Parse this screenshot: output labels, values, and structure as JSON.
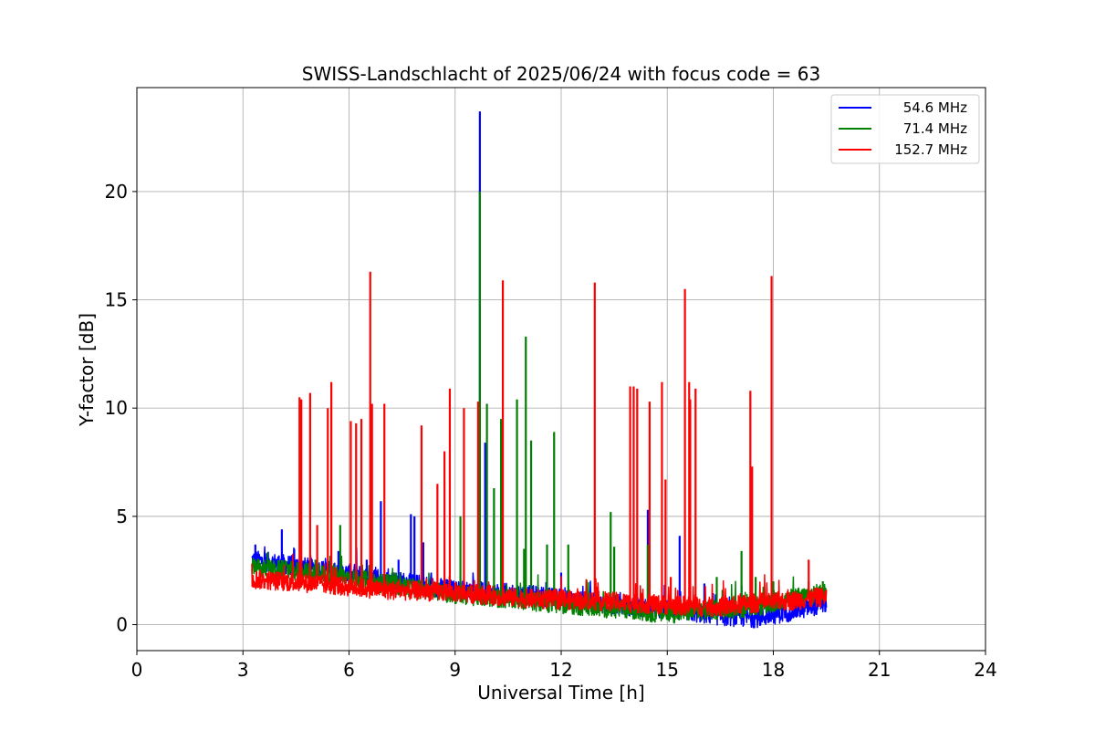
{
  "chart_data": {
    "type": "line",
    "title": "SWISS-Landschlacht of 2025/06/24 with focus code = 63",
    "xlabel": "Universal Time [h]",
    "ylabel": "Y-factor [dB]",
    "xlim": [
      0,
      24
    ],
    "ylim": [
      -1.2,
      24.8
    ],
    "xticks": [
      0,
      3,
      6,
      9,
      12,
      15,
      18,
      21,
      24
    ],
    "yticks": [
      0,
      5,
      10,
      15,
      20
    ],
    "xtick_labels": [
      "0",
      "3",
      "6",
      "9",
      "12",
      "15",
      "18",
      "21",
      "24"
    ],
    "ytick_labels": [
      "0",
      "5",
      "10",
      "15",
      "20"
    ],
    "grid": true,
    "legend_position": "top-right",
    "x_range": [
      3.25,
      19.5
    ],
    "series": [
      {
        "name": "54.6 MHz",
        "color": "#0000ff",
        "baseline": [
          [
            3.25,
            3.0
          ],
          [
            5.0,
            2.6
          ],
          [
            7.0,
            2.1
          ],
          [
            9.0,
            1.6
          ],
          [
            11.0,
            1.4
          ],
          [
            13.0,
            1.0
          ],
          [
            15.0,
            0.7
          ],
          [
            16.5,
            0.4
          ],
          [
            17.5,
            0.3
          ],
          [
            18.5,
            0.6
          ],
          [
            19.5,
            1.0
          ]
        ],
        "spikes": [
          [
            3.35,
            3.7
          ],
          [
            4.1,
            4.4
          ],
          [
            4.45,
            3.5
          ],
          [
            5.7,
            3.4
          ],
          [
            6.5,
            3.0
          ],
          [
            6.9,
            5.7
          ],
          [
            7.4,
            3.0
          ],
          [
            7.75,
            5.1
          ],
          [
            7.85,
            5.0
          ],
          [
            8.1,
            3.8
          ],
          [
            9.7,
            23.7
          ],
          [
            9.85,
            8.4
          ],
          [
            12.0,
            2.4
          ],
          [
            14.45,
            5.3
          ],
          [
            15.35,
            4.1
          ],
          [
            16.05,
            1.9
          ],
          [
            17.1,
            1.8
          ]
        ]
      },
      {
        "name": "71.4 MHz",
        "color": "#008000",
        "baseline": [
          [
            3.25,
            2.6
          ],
          [
            5.0,
            2.4
          ],
          [
            7.0,
            1.9
          ],
          [
            9.0,
            1.4
          ],
          [
            11.0,
            1.1
          ],
          [
            13.0,
            0.8
          ],
          [
            15.0,
            0.5
          ],
          [
            16.5,
            0.7
          ],
          [
            17.5,
            0.8
          ],
          [
            18.5,
            1.2
          ],
          [
            19.5,
            1.5
          ]
        ],
        "spikes": [
          [
            5.05,
            3.0
          ],
          [
            5.75,
            4.6
          ],
          [
            9.15,
            5.0
          ],
          [
            9.7,
            20.0
          ],
          [
            9.9,
            10.2
          ],
          [
            10.1,
            6.3
          ],
          [
            10.3,
            9.5
          ],
          [
            10.75,
            10.4
          ],
          [
            10.95,
            3.5
          ],
          [
            11.0,
            13.3
          ],
          [
            11.15,
            8.5
          ],
          [
            11.6,
            3.7
          ],
          [
            11.8,
            8.9
          ],
          [
            12.2,
            3.7
          ],
          [
            13.4,
            5.2
          ],
          [
            13.5,
            3.6
          ],
          [
            14.45,
            3.7
          ],
          [
            16.4,
            2.2
          ],
          [
            17.1,
            3.4
          ],
          [
            17.5,
            2.2
          ],
          [
            18.0,
            2.0
          ],
          [
            19.0,
            2.0
          ],
          [
            19.4,
            2.0
          ]
        ]
      },
      {
        "name": "152.7 MHz",
        "color": "#ff0000",
        "baseline": [
          [
            3.25,
            2.1
          ],
          [
            5.0,
            1.9
          ],
          [
            7.0,
            1.6
          ],
          [
            9.0,
            1.5
          ],
          [
            11.0,
            1.2
          ],
          [
            13.0,
            1.1
          ],
          [
            15.0,
            0.9
          ],
          [
            16.5,
            0.8
          ],
          [
            17.5,
            1.0
          ],
          [
            18.5,
            1.1
          ],
          [
            19.5,
            1.3
          ]
        ],
        "spikes": [
          [
            4.6,
            10.5
          ],
          [
            4.65,
            10.4
          ],
          [
            4.9,
            10.7
          ],
          [
            5.1,
            4.6
          ],
          [
            5.4,
            10.0
          ],
          [
            5.5,
            11.2
          ],
          [
            6.05,
            9.4
          ],
          [
            6.2,
            9.3
          ],
          [
            6.35,
            9.5
          ],
          [
            6.6,
            16.3
          ],
          [
            6.65,
            10.2
          ],
          [
            7.0,
            10.2
          ],
          [
            8.05,
            9.2
          ],
          [
            8.5,
            6.5
          ],
          [
            8.7,
            8.0
          ],
          [
            8.85,
            10.9
          ],
          [
            9.25,
            10.0
          ],
          [
            9.65,
            10.3
          ],
          [
            10.35,
            15.9
          ],
          [
            12.95,
            15.8
          ],
          [
            13.95,
            11.0
          ],
          [
            14.05,
            11.0
          ],
          [
            14.15,
            10.9
          ],
          [
            14.5,
            10.3
          ],
          [
            14.85,
            11.2
          ],
          [
            14.95,
            6.7
          ],
          [
            15.1,
            2.2
          ],
          [
            15.5,
            15.5
          ],
          [
            15.62,
            11.2
          ],
          [
            15.65,
            10.4
          ],
          [
            15.8,
            10.9
          ],
          [
            17.35,
            10.8
          ],
          [
            17.4,
            7.3
          ],
          [
            17.95,
            16.1
          ],
          [
            19.0,
            3.0
          ]
        ]
      }
    ]
  }
}
